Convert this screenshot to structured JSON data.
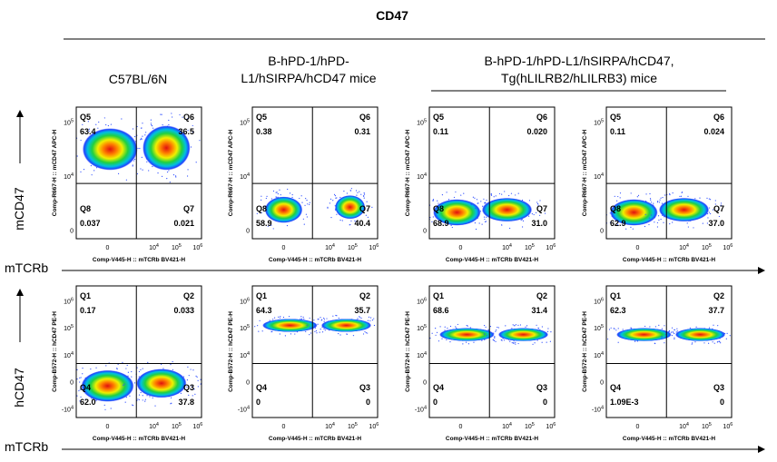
{
  "title": "CD47",
  "column_headers": [
    [
      "C57BL/6N"
    ],
    [
      "B-hPD-1/hPD-",
      "L1/hSIRPA/hCD47 mice"
    ],
    [
      "B-hPD-1/hPD-L1/hSIRPA/hCD47,",
      "Tg(hLILRB2/hLILRB3) mice"
    ]
  ],
  "rows": [
    {
      "row_label": "mCD47",
      "x_label": "mTCRb",
      "plot_y_label": "Comp-R667-H :: mCD47 APC-H",
      "plot_x_label": "Comp-V445-H :: mTCRb BV421-H",
      "y_ticks": [
        {
          "text": "10",
          "sup": "5"
        },
        {
          "text": "10",
          "sup": "4"
        },
        {
          "text": "0"
        }
      ],
      "x_ticks": [
        {
          "text": "0"
        },
        {
          "text": "10",
          "sup": "4"
        },
        {
          "text": "10",
          "sup": "5"
        },
        {
          "text": "10",
          "sup": "6"
        }
      ],
      "plots": [
        {
          "quadrants": [
            {
              "name": "Q5",
              "value": "63.4"
            },
            {
              "name": "Q6",
              "value": "36.5"
            },
            {
              "name": "Q8",
              "value": "0.037"
            },
            {
              "name": "Q7",
              "value": "0.021"
            }
          ]
        },
        {
          "quadrants": [
            {
              "name": "Q5",
              "value": "0.38"
            },
            {
              "name": "Q6",
              "value": "0.31"
            },
            {
              "name": "Q8",
              "value": "58.9"
            },
            {
              "name": "Q7",
              "value": "40.4"
            }
          ]
        },
        {
          "quadrants": [
            {
              "name": "Q5",
              "value": "0.11"
            },
            {
              "name": "Q6",
              "value": "0.020"
            },
            {
              "name": "Q8",
              "value": "68.9"
            },
            {
              "name": "Q7",
              "value": "31.0"
            }
          ]
        },
        {
          "quadrants": [
            {
              "name": "Q5",
              "value": "0.11"
            },
            {
              "name": "Q6",
              "value": "0.024"
            },
            {
              "name": "Q8",
              "value": "62.9"
            },
            {
              "name": "Q7",
              "value": "37.0"
            }
          ]
        }
      ]
    },
    {
      "row_label": "hCD47",
      "x_label": "mTCRb",
      "plot_y_label": "Comp-B572-H :: hCD47 PE-H",
      "plot_x_label": "Comp-V445-H :: mTCRb BV421-H",
      "y_ticks": [
        {
          "text": "10",
          "sup": "6"
        },
        {
          "text": "10",
          "sup": "5"
        },
        {
          "text": "10",
          "sup": "4"
        },
        {
          "text": "0"
        },
        {
          "text": "-10",
          "sup": "4"
        }
      ],
      "x_ticks": [
        {
          "text": "0"
        },
        {
          "text": "10",
          "sup": "4"
        },
        {
          "text": "10",
          "sup": "5"
        },
        {
          "text": "10",
          "sup": "6"
        }
      ],
      "plots": [
        {
          "quadrants": [
            {
              "name": "Q1",
              "value": "0.17"
            },
            {
              "name": "Q2",
              "value": "0.033"
            },
            {
              "name": "Q4",
              "value": "62.0"
            },
            {
              "name": "Q3",
              "value": "37.8"
            }
          ]
        },
        {
          "quadrants": [
            {
              "name": "Q1",
              "value": "64.3"
            },
            {
              "name": "Q2",
              "value": "35.7"
            },
            {
              "name": "Q4",
              "value": "0"
            },
            {
              "name": "Q3",
              "value": "0"
            }
          ]
        },
        {
          "quadrants": [
            {
              "name": "Q1",
              "value": "68.6"
            },
            {
              "name": "Q2",
              "value": "31.4"
            },
            {
              "name": "Q4",
              "value": "0"
            },
            {
              "name": "Q3",
              "value": "0"
            }
          ]
        },
        {
          "quadrants": [
            {
              "name": "Q1",
              "value": "62.3"
            },
            {
              "name": "Q2",
              "value": "37.7"
            },
            {
              "name": "Q4",
              "value": "1.09E-3"
            },
            {
              "name": "Q3",
              "value": "0"
            }
          ]
        }
      ]
    }
  ]
}
